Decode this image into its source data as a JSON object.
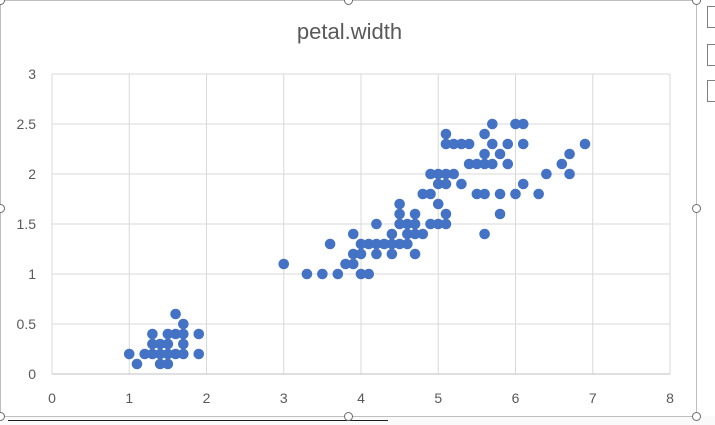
{
  "chart_data": {
    "type": "scatter",
    "title": "petal.width",
    "xlabel": "",
    "ylabel": "",
    "xlim": [
      0,
      8
    ],
    "ylim": [
      0,
      3
    ],
    "x_ticks": [
      "0",
      "1",
      "2",
      "3",
      "4",
      "5",
      "6",
      "7",
      "8"
    ],
    "y_ticks": [
      "0",
      "0.5",
      "1",
      "1.5",
      "2",
      "2.5",
      "3"
    ],
    "grid": true,
    "color": "#4472c4",
    "points": [
      [
        1.0,
        0.2
      ],
      [
        1.1,
        0.1
      ],
      [
        1.2,
        0.2
      ],
      [
        1.3,
        0.2
      ],
      [
        1.3,
        0.3
      ],
      [
        1.3,
        0.4
      ],
      [
        1.4,
        0.1
      ],
      [
        1.4,
        0.2
      ],
      [
        1.4,
        0.3
      ],
      [
        1.5,
        0.1
      ],
      [
        1.5,
        0.2
      ],
      [
        1.5,
        0.3
      ],
      [
        1.5,
        0.4
      ],
      [
        1.6,
        0.2
      ],
      [
        1.6,
        0.4
      ],
      [
        1.6,
        0.6
      ],
      [
        1.7,
        0.2
      ],
      [
        1.7,
        0.3
      ],
      [
        1.7,
        0.4
      ],
      [
        1.7,
        0.5
      ],
      [
        1.9,
        0.2
      ],
      [
        1.9,
        0.4
      ],
      [
        3.0,
        1.1
      ],
      [
        3.3,
        1.0
      ],
      [
        3.5,
        1.0
      ],
      [
        3.6,
        1.3
      ],
      [
        3.7,
        1.0
      ],
      [
        3.8,
        1.1
      ],
      [
        3.9,
        1.1
      ],
      [
        3.9,
        1.2
      ],
      [
        3.9,
        1.4
      ],
      [
        4.0,
        1.0
      ],
      [
        4.0,
        1.2
      ],
      [
        4.0,
        1.3
      ],
      [
        4.1,
        1.0
      ],
      [
        4.1,
        1.3
      ],
      [
        4.2,
        1.2
      ],
      [
        4.2,
        1.3
      ],
      [
        4.2,
        1.5
      ],
      [
        4.3,
        1.3
      ],
      [
        4.4,
        1.2
      ],
      [
        4.4,
        1.3
      ],
      [
        4.4,
        1.4
      ],
      [
        4.5,
        1.3
      ],
      [
        4.5,
        1.5
      ],
      [
        4.5,
        1.6
      ],
      [
        4.5,
        1.7
      ],
      [
        4.6,
        1.3
      ],
      [
        4.6,
        1.4
      ],
      [
        4.6,
        1.5
      ],
      [
        4.7,
        1.2
      ],
      [
        4.7,
        1.4
      ],
      [
        4.7,
        1.5
      ],
      [
        4.7,
        1.6
      ],
      [
        4.8,
        1.4
      ],
      [
        4.8,
        1.8
      ],
      [
        4.9,
        1.5
      ],
      [
        4.9,
        1.8
      ],
      [
        4.9,
        2.0
      ],
      [
        5.0,
        1.5
      ],
      [
        5.0,
        1.7
      ],
      [
        5.0,
        1.9
      ],
      [
        5.0,
        2.0
      ],
      [
        5.1,
        1.5
      ],
      [
        5.1,
        1.6
      ],
      [
        5.1,
        1.9
      ],
      [
        5.1,
        2.0
      ],
      [
        5.1,
        2.3
      ],
      [
        5.1,
        2.4
      ],
      [
        5.2,
        2.0
      ],
      [
        5.2,
        2.3
      ],
      [
        5.3,
        1.9
      ],
      [
        5.3,
        2.3
      ],
      [
        5.4,
        2.1
      ],
      [
        5.4,
        2.3
      ],
      [
        5.5,
        1.8
      ],
      [
        5.5,
        2.1
      ],
      [
        5.6,
        1.4
      ],
      [
        5.6,
        1.8
      ],
      [
        5.6,
        2.1
      ],
      [
        5.6,
        2.2
      ],
      [
        5.6,
        2.4
      ],
      [
        5.7,
        2.1
      ],
      [
        5.7,
        2.3
      ],
      [
        5.7,
        2.5
      ],
      [
        5.8,
        1.6
      ],
      [
        5.8,
        1.8
      ],
      [
        5.8,
        2.2
      ],
      [
        5.9,
        2.1
      ],
      [
        5.9,
        2.3
      ],
      [
        6.0,
        1.8
      ],
      [
        6.0,
        2.5
      ],
      [
        6.1,
        1.9
      ],
      [
        6.1,
        2.3
      ],
      [
        6.1,
        2.5
      ],
      [
        6.3,
        1.8
      ],
      [
        6.4,
        2.0
      ],
      [
        6.6,
        2.1
      ],
      [
        6.7,
        2.0
      ],
      [
        6.7,
        2.2
      ],
      [
        6.9,
        2.3
      ]
    ]
  }
}
